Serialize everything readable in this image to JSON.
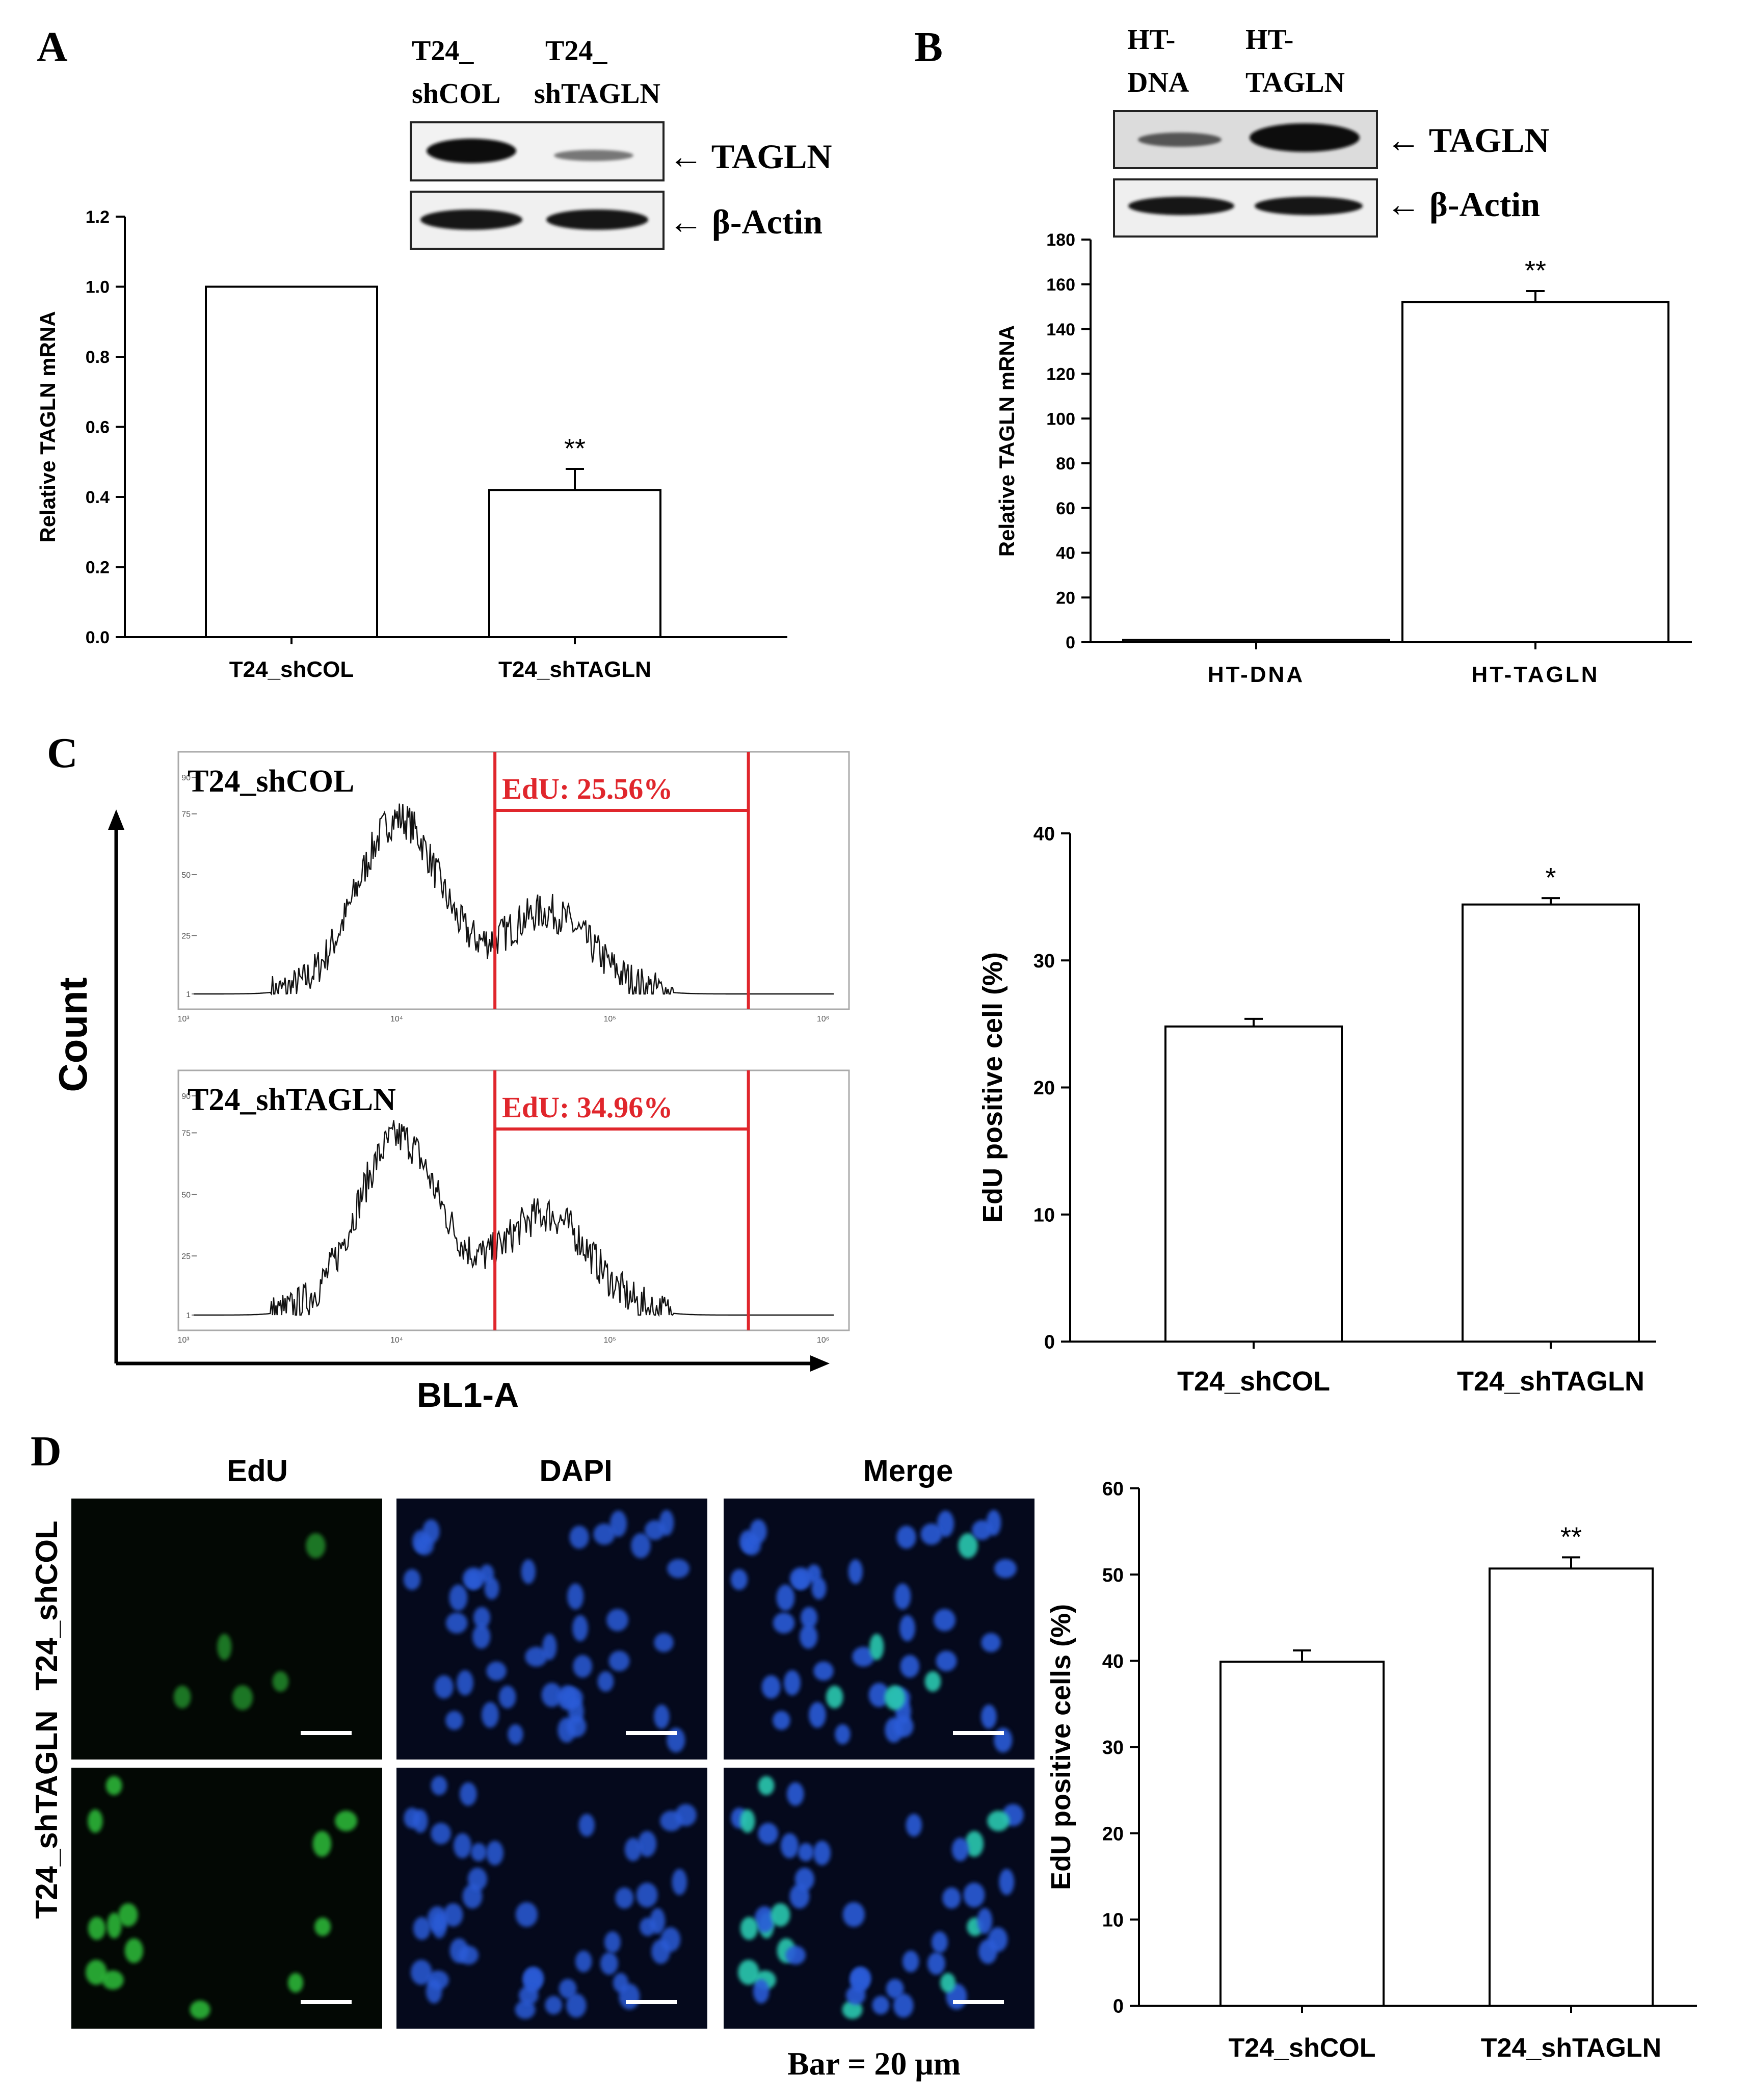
{
  "panels": {
    "A": {
      "letter": "A",
      "blot": {
        "lanes": [
          "T24_\nshCOL",
          "T24_\nshTAGLN"
        ],
        "lane_line1": [
          "T24_",
          "T24_"
        ],
        "lane_line2": [
          "shCOL",
          "shTAGLN"
        ],
        "bands": [
          "← TAGLN",
          "← β-Actin"
        ],
        "tagln_intensity": [
          1.0,
          0.35
        ],
        "actin_intensity": [
          1.0,
          1.0
        ]
      },
      "chart_data": {
        "type": "bar",
        "categories": [
          "T24_shCOL",
          "T24_shTAGLN"
        ],
        "values": [
          1.0,
          0.42
        ],
        "errors": [
          0,
          0.06
        ],
        "significance": [
          "",
          "**"
        ],
        "ylabel": "Relative TAGLN mRNA",
        "ylim": [
          0,
          1.2
        ],
        "yticks": [
          "0.0",
          "0.2",
          "0.4",
          "0.6",
          "0.8",
          "1.0",
          "1.2"
        ]
      }
    },
    "B": {
      "letter": "B",
      "blot": {
        "lane_line1": [
          "HT-",
          "HT-"
        ],
        "lane_line2": [
          "DNA",
          "TAGLN"
        ],
        "bands": [
          "← TAGLN",
          "← β-Actin"
        ]
      },
      "chart_data": {
        "type": "bar",
        "categories": [
          "HT-DNA",
          "HT-TAGLN"
        ],
        "values": [
          1,
          152
        ],
        "errors": [
          0,
          5
        ],
        "significance": [
          "",
          "**"
        ],
        "ylabel": "Relative TAGLN mRNA",
        "ylim": [
          0,
          180
        ],
        "yticks": [
          "0",
          "20",
          "40",
          "60",
          "80",
          "100",
          "120",
          "140",
          "160",
          "180"
        ]
      }
    },
    "C": {
      "letter": "C",
      "flow": {
        "ylabel": "Count",
        "xlabel": "BL1-A",
        "histograms": [
          {
            "sample": "T24_shCOL",
            "gate_label": "EdU: 25.56%"
          },
          {
            "sample": "T24_shTAGLN",
            "gate_label": "EdU: 34.96%"
          }
        ],
        "yticks": [
          "1",
          "25",
          "50",
          "75",
          "90"
        ],
        "xticks": [
          "10³",
          "10⁴",
          "10⁵",
          "10⁶"
        ]
      },
      "chart_data": {
        "type": "bar",
        "categories": [
          "T24_shCOL",
          "T24_shTAGLN"
        ],
        "values": [
          24.8,
          34.4
        ],
        "errors": [
          0.6,
          0.5
        ],
        "significance": [
          "",
          "*"
        ],
        "ylabel": "EdU positive cell (%)",
        "ylim": [
          0,
          40
        ],
        "yticks": [
          "0",
          "10",
          "20",
          "30",
          "40"
        ]
      }
    },
    "D": {
      "letter": "D",
      "micro": {
        "columns": [
          "EdU",
          "DAPI",
          "Merge"
        ],
        "rows": [
          "T24_shCOL",
          "T24_shTAGLN"
        ],
        "scale": "Bar = 20 μm"
      },
      "chart_data": {
        "type": "bar",
        "categories": [
          "T24_shCOL",
          "T24_shTAGLN"
        ],
        "values": [
          39.9,
          50.7
        ],
        "errors": [
          1.3,
          1.3
        ],
        "significance": [
          "",
          "**"
        ],
        "ylabel": "EdU positive cells (%)",
        "ylim": [
          0,
          60
        ],
        "yticks": [
          "0",
          "10",
          "20",
          "30",
          "40",
          "50",
          "60"
        ]
      }
    }
  },
  "colors": {
    "gate": "#e0262c",
    "edu": "#2fbf3a",
    "dapi": "#2a5bd8",
    "merge": "#29c9b0"
  }
}
